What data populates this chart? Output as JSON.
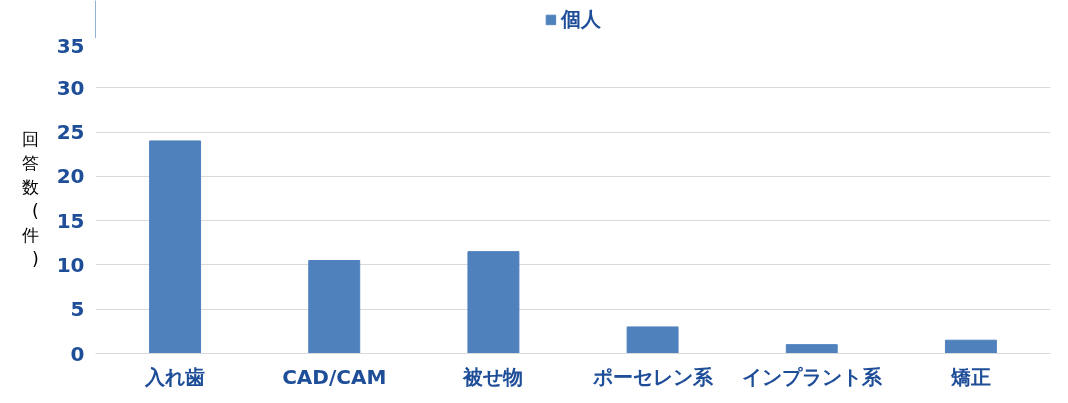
{
  "chart_data": {
    "type": "bar",
    "ylabel": "回答数(件)",
    "categories": [
      "入れ歯",
      "CAD/CAM",
      "被せ物",
      "ポーセレン系",
      "インプラント系",
      "矯正"
    ],
    "series": [
      {
        "name": "個人",
        "color": "#4f81bd",
        "values": [
          24,
          10.5,
          11.5,
          3,
          1,
          1.5
        ]
      }
    ],
    "ylim": [
      0,
      35
    ],
    "yticks": [
      0,
      5,
      10,
      15,
      20,
      25,
      30,
      35
    ],
    "grid": "y",
    "legend": "top"
  }
}
